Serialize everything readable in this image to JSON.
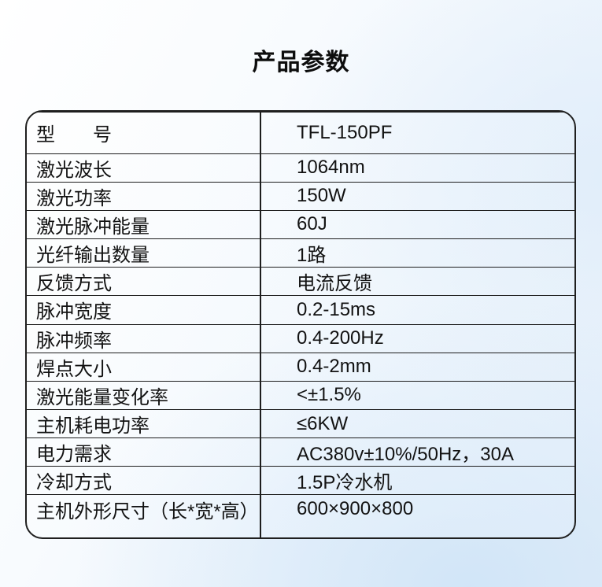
{
  "page": {
    "title": "产品参数"
  },
  "colors": {
    "text": "#121212",
    "border": "#1d1d1d",
    "background_top_left": "#ffffff",
    "background_bottom_right": "#d9e9f8"
  },
  "table": {
    "rows": [
      {
        "label": "型　　号",
        "value": "TFL-150PF"
      },
      {
        "label": "激光波长",
        "value": "1064nm"
      },
      {
        "label": "激光功率",
        "value": "150W"
      },
      {
        "label": "激光脉冲能量",
        "value": "60J"
      },
      {
        "label": "光纤输出数量",
        "value": "1路"
      },
      {
        "label": "反馈方式",
        "value": "电流反馈"
      },
      {
        "label": "脉冲宽度",
        "value": "0.2-15ms"
      },
      {
        "label": "脉冲频率",
        "value": "0.4-200Hz"
      },
      {
        "label": "焊点大小",
        "value": "0.4-2mm"
      },
      {
        "label": "激光能量变化率",
        "value": "<±1.5%"
      },
      {
        "label": "主机耗电功率",
        "value": "≤6KW"
      },
      {
        "label": "电力需求",
        "value": "AC380v±10%/50Hz，30A"
      },
      {
        "label": "冷却方式",
        "value": "1.5P冷水机"
      },
      {
        "label": "主机外形尺寸（长*宽*高）",
        "value": "600×900×800"
      }
    ]
  }
}
